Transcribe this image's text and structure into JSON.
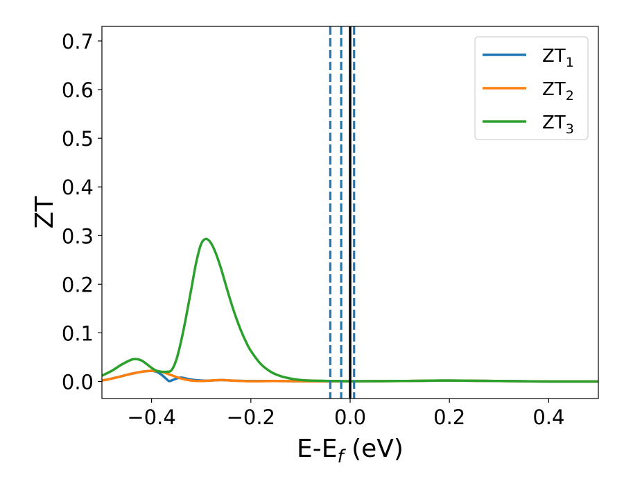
{
  "chart_data": {
    "type": "line",
    "xlabel_main": "E-E",
    "xlabel_sub": "f",
    "xlabel_unit": " (eV)",
    "ylabel": "ZT",
    "xlim": [
      -0.5,
      0.5
    ],
    "ylim": [
      -0.035,
      0.73
    ],
    "x_ticks": [
      -0.4,
      -0.2,
      0.0,
      0.2,
      0.4
    ],
    "x_tick_labels": [
      "−0.4",
      "−0.2",
      "0.0",
      "0.2",
      "0.4"
    ],
    "y_ticks": [
      0.0,
      0.1,
      0.2,
      0.3,
      0.4,
      0.5,
      0.6,
      0.7
    ],
    "y_tick_labels": [
      "0.0",
      "0.1",
      "0.2",
      "0.3",
      "0.4",
      "0.5",
      "0.6",
      "0.7"
    ],
    "grid": false,
    "legend_position": "top-right",
    "series": [
      {
        "name": "ZT",
        "subscript": "1",
        "color": "#1f77b4",
        "x": [
          -0.5,
          -0.48,
          -0.46,
          -0.44,
          -0.42,
          -0.4,
          -0.39,
          -0.38,
          -0.37,
          -0.365,
          -0.36,
          -0.35,
          -0.34,
          -0.32,
          -0.3,
          -0.28,
          -0.26,
          -0.24,
          -0.2,
          -0.15,
          -0.1,
          0.0,
          0.1,
          0.2,
          0.3,
          0.4,
          0.5
        ],
        "y": [
          0.002,
          0.006,
          0.011,
          0.016,
          0.02,
          0.022,
          0.02,
          0.014,
          0.005,
          0.001,
          0.002,
          0.006,
          0.008,
          0.004,
          0.002,
          0.002,
          0.003,
          0.002,
          0.001,
          0.001,
          0.0005,
          0.0005,
          0.001,
          0.002,
          0.001,
          0.0,
          0.0
        ]
      },
      {
        "name": "ZT",
        "subscript": "2",
        "color": "#ff7f0e",
        "x": [
          -0.5,
          -0.48,
          -0.46,
          -0.44,
          -0.42,
          -0.4,
          -0.38,
          -0.36,
          -0.34,
          -0.32,
          -0.3,
          -0.28,
          -0.26,
          -0.24,
          -0.2,
          -0.15,
          -0.1,
          0.0,
          0.1,
          0.2,
          0.3,
          0.4,
          0.5
        ],
        "y": [
          0.002,
          0.006,
          0.011,
          0.016,
          0.02,
          0.022,
          0.02,
          0.013,
          0.006,
          0.002,
          0.001,
          0.002,
          0.003,
          0.002,
          0.0005,
          0.001,
          0.0005,
          0.0005,
          0.001,
          0.002,
          0.001,
          0.0,
          0.0
        ]
      },
      {
        "name": "ZT",
        "subscript": "3",
        "color": "#2ca02c",
        "x": [
          -0.5,
          -0.48,
          -0.46,
          -0.44,
          -0.43,
          -0.42,
          -0.41,
          -0.4,
          -0.39,
          -0.38,
          -0.37,
          -0.36,
          -0.35,
          -0.34,
          -0.33,
          -0.32,
          -0.31,
          -0.3,
          -0.29,
          -0.28,
          -0.27,
          -0.26,
          -0.25,
          -0.24,
          -0.23,
          -0.22,
          -0.21,
          -0.2,
          -0.18,
          -0.16,
          -0.14,
          -0.12,
          -0.1,
          -0.08,
          -0.06,
          -0.04,
          -0.02,
          0.0,
          0.1,
          0.2,
          0.3,
          0.4,
          0.5
        ],
        "y": [
          0.012,
          0.022,
          0.035,
          0.045,
          0.046,
          0.043,
          0.036,
          0.028,
          0.022,
          0.02,
          0.02,
          0.023,
          0.045,
          0.085,
          0.135,
          0.19,
          0.245,
          0.283,
          0.293,
          0.284,
          0.262,
          0.232,
          0.197,
          0.163,
          0.132,
          0.105,
          0.082,
          0.063,
          0.036,
          0.02,
          0.011,
          0.006,
          0.003,
          0.002,
          0.0015,
          0.001,
          0.001,
          0.0005,
          0.001,
          0.002,
          0.001,
          0.0,
          0.0
        ]
      }
    ],
    "vertical_lines": [
      {
        "x": -0.04,
        "style": "dashed",
        "color": "#1f77b4"
      },
      {
        "x": -0.018,
        "style": "dashed",
        "color": "#1f77b4"
      },
      {
        "x": 0.008,
        "style": "dashed",
        "color": "#1f77b4"
      },
      {
        "x": 0.0,
        "style": "solid",
        "color": "#000000"
      }
    ]
  }
}
